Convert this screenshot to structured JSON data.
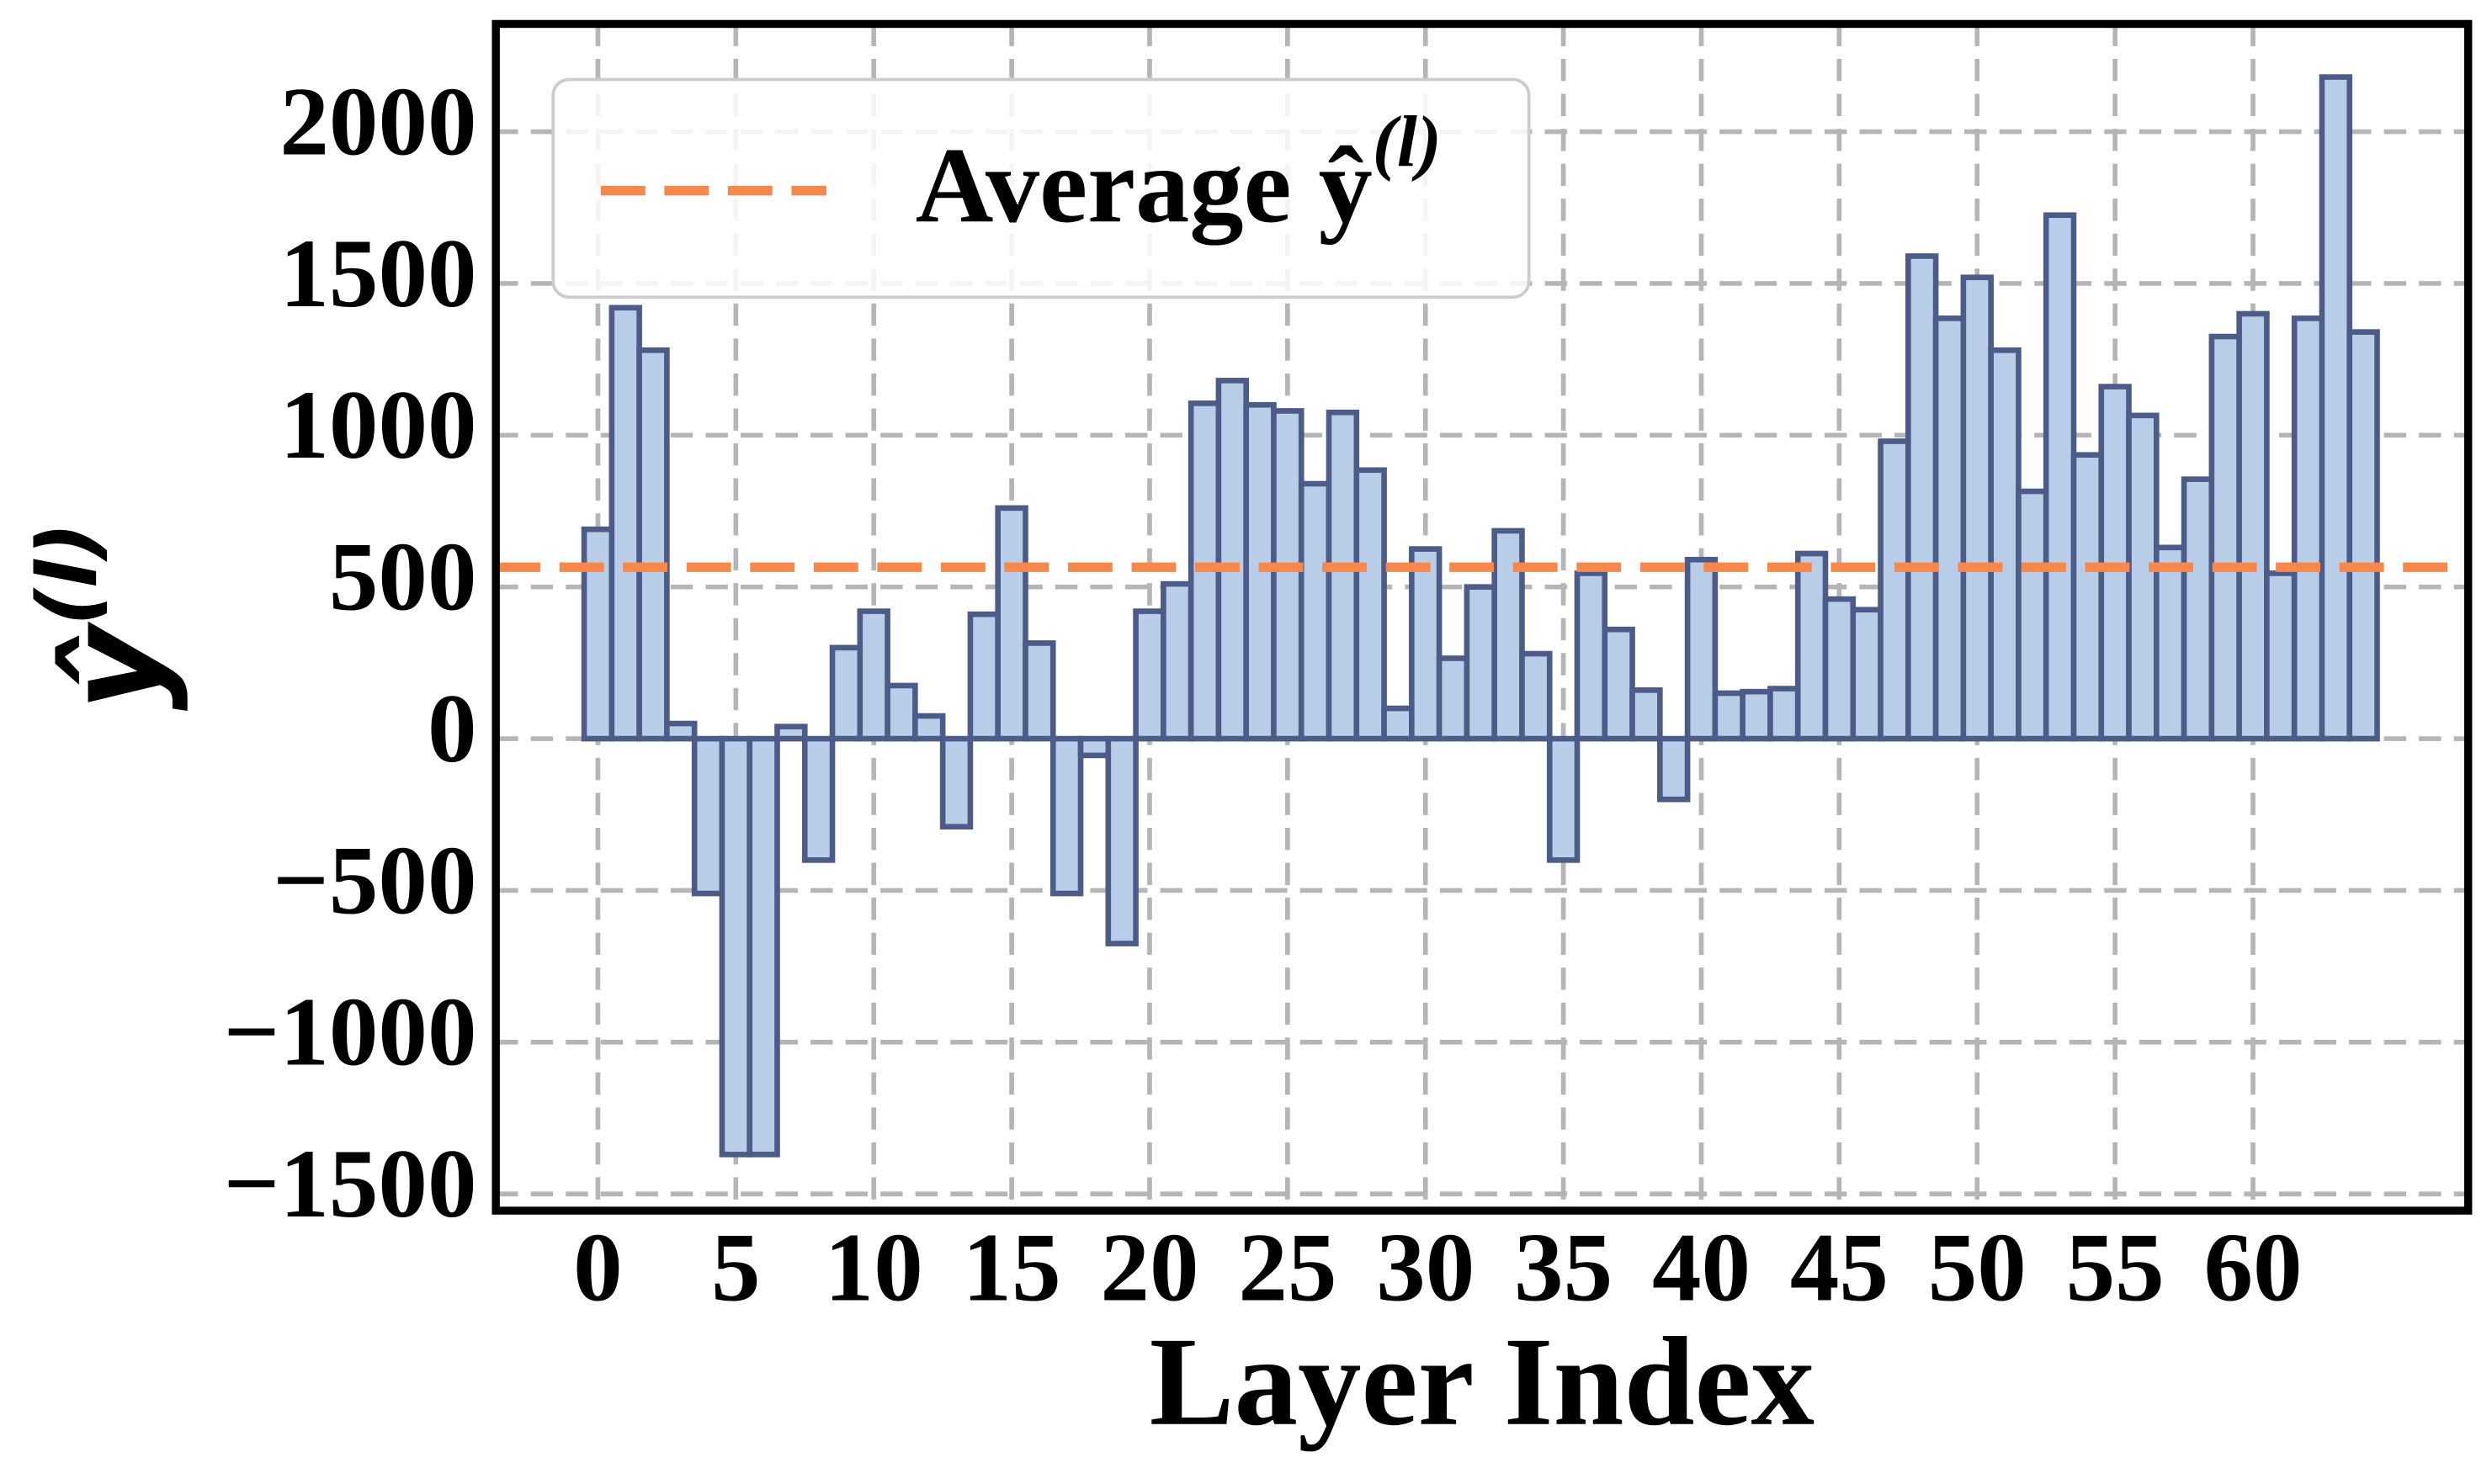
{
  "chart_data": {
    "type": "bar",
    "xlabel": "Layer Index",
    "ylabel": "ŷ",
    "ylabel_sup": "(l)",
    "x": [
      0,
      1,
      2,
      3,
      4,
      5,
      6,
      7,
      8,
      9,
      10,
      11,
      12,
      13,
      14,
      15,
      16,
      17,
      18,
      19,
      20,
      21,
      22,
      23,
      24,
      25,
      26,
      27,
      28,
      29,
      30,
      31,
      32,
      33,
      34,
      35,
      36,
      37,
      38,
      39,
      40,
      41,
      42,
      43,
      44,
      45,
      46,
      47,
      48,
      49,
      50,
      51,
      52,
      53,
      54,
      55,
      56,
      57,
      58,
      59,
      60,
      61,
      62,
      63,
      64
    ],
    "values": [
      690,
      1420,
      1280,
      50,
      -510,
      -1370,
      -1370,
      40,
      -400,
      300,
      420,
      175,
      75,
      -290,
      410,
      760,
      315,
      -510,
      -55,
      -675,
      420,
      510,
      1105,
      1180,
      1100,
      1080,
      840,
      1075,
      885,
      100,
      625,
      265,
      500,
      685,
      280,
      -400,
      545,
      360,
      160,
      -200,
      590,
      150,
      155,
      165,
      610,
      460,
      425,
      980,
      1590,
      1385,
      1520,
      1280,
      815,
      1725,
      935,
      1160,
      1065,
      630,
      855,
      1325,
      1400,
      545,
      1385,
      2180,
      1340
    ],
    "color": "#b9cde9",
    "edgecolor": "#4d5b88",
    "average": {
      "name": "Average ŷ",
      "name_sup": "(l)",
      "value": 565,
      "color": "#f5884a"
    },
    "xlim": [
      -3.7,
      67.8
    ],
    "ylim": [
      -1555,
      2355
    ],
    "xticks": [
      0,
      5,
      10,
      15,
      20,
      25,
      30,
      35,
      40,
      45,
      50,
      55,
      60
    ],
    "yticks": [
      {
        "value": -1500,
        "label": "−1500"
      },
      {
        "value": -1000,
        "label": "−1000"
      },
      {
        "value": -500,
        "label": "−500"
      },
      0,
      500,
      1000,
      1500,
      2000
    ],
    "grid": true,
    "legend": "upper left"
  }
}
